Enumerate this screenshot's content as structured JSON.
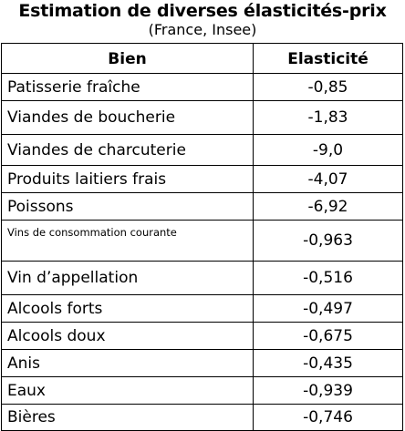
{
  "header": {
    "title": "Estimation de diverses élasticités-prix",
    "subtitle": "(France, Insee)"
  },
  "table": {
    "columns": [
      "Bien",
      "Elasticité"
    ],
    "rows": [
      {
        "bien": "Patisserie fraîche",
        "elasticite": "-0,85"
      },
      {
        "bien": "Viandes de boucherie",
        "elasticite": "-1,83"
      },
      {
        "bien": "Viandes de charcuterie",
        "elasticite": "-9,0"
      },
      {
        "bien": "Produits laitiers frais",
        "elasticite": "-4,07"
      },
      {
        "bien": "Poissons",
        "elasticite": "-6,92"
      },
      {
        "bien": "Vins de consommation courante",
        "elasticite": "-0,963"
      },
      {
        "bien": "Vin d’appellation",
        "elasticite": "-0,516"
      },
      {
        "bien": "Alcools forts",
        "elasticite": "-0,497"
      },
      {
        "bien": "Alcools doux",
        "elasticite": "-0,675"
      },
      {
        "bien": "Anis",
        "elasticite": "-0,435"
      },
      {
        "bien": "Eaux",
        "elasticite": "-0,939"
      },
      {
        "bien": "Bières",
        "elasticite": "-0,746"
      }
    ]
  }
}
